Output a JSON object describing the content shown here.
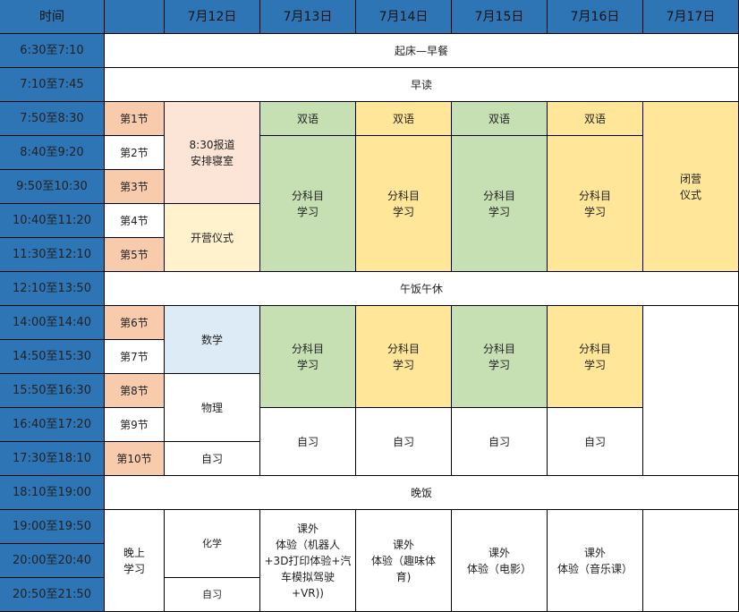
{
  "header": {
    "time": "时间",
    "blank": "",
    "days": [
      "7月12日",
      "7月13日",
      "7月14日",
      "7月15日",
      "7月16日",
      "7月17日"
    ]
  },
  "times": [
    "6:30至7:10",
    "7:10至7:45",
    "7:50至8:30",
    "8:40至9:20",
    "9:50至10:30",
    "10:40至11:20",
    "11:30至12:10",
    "12:10至13:50",
    "14:00至14:40",
    "14:50至15:30",
    "15:50至16:30",
    "16:40至17:20",
    "17:30至18:10",
    "18:10至19:00",
    "19:00至19:50",
    "20:00至20:40",
    "20:50至21:50"
  ],
  "periods": [
    "第1节",
    "第2节",
    "第3节",
    "第4节",
    "第5节",
    "第6节",
    "第7节",
    "第8节",
    "第9节",
    "第10节"
  ],
  "full_rows": {
    "wake": "起床—早餐",
    "morning_read": "早读",
    "lunch": "午饭午休",
    "dinner": "晚饭"
  },
  "morning": {
    "d12_a": "8:30报道\n安排寝室",
    "d12_b": "开营仪式",
    "bilingual": "双语",
    "subject": "分科目\n学习",
    "d17": "闭营\n仪式"
  },
  "afternoon": {
    "d12_math": "数学",
    "d12_physics": "物理",
    "d12_self": "自习",
    "subject": "分科目\n学习",
    "self": "自习"
  },
  "evening": {
    "label": "晚上\n学习",
    "d12_chem": "化学",
    "d12_self": "自习",
    "d13": "课外\n体验（机器人\n+3D打印体验+汽\n车模拟驾驶\n+VR))",
    "d14": "课外\n体验（趣味体\n育)",
    "d15": "课外\n体验（电影）",
    "d16": "课外\n体验（音乐课）"
  },
  "colors": {
    "header": "#2E75B6",
    "period_odd": "#F8CBAD",
    "register": "#FCE4D6",
    "opening": "#FFF2CC",
    "green": "#C6E0B4",
    "yellow": "#FFE699",
    "math": "#DDEBF7"
  }
}
